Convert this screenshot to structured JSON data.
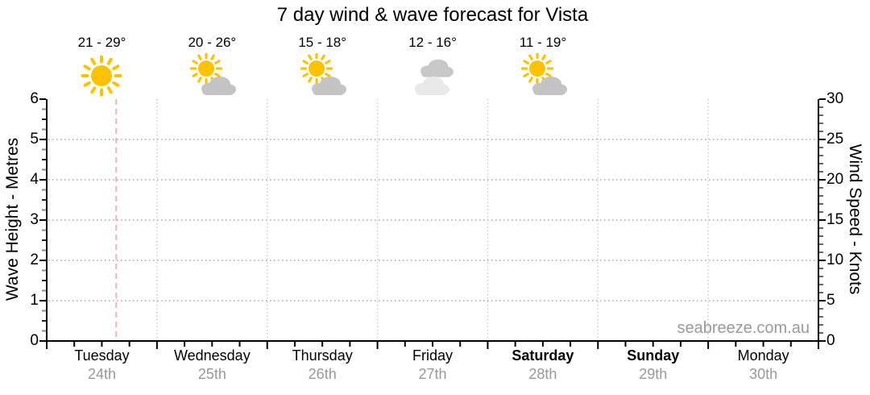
{
  "title": "7 day wind & wave forecast for Vista",
  "watermark": "seabreeze.com.au",
  "colors": {
    "sun": "#ffc200",
    "cloud": "#c4c4c4",
    "cloud_dark": "#c8c8c8",
    "cloud_light": "#e9e9e9",
    "axis": "#000000",
    "gridline": "#a8a8a8",
    "day_separator": "#c6c6c6",
    "now_line": "#f5b2b2",
    "date_text": "#999999",
    "watermark_text": "#9a9a9a"
  },
  "chart_data": {
    "type": "line",
    "title": "7 day wind & wave forecast for Vista",
    "series": [],
    "left_axis": {
      "label": "Wave Height - Metres",
      "min": 0,
      "max": 6,
      "major_step": 1,
      "minor_step": 0.25,
      "major_ticks": [
        0,
        1,
        2,
        3,
        4,
        5,
        6
      ]
    },
    "right_axis": {
      "label": "Wind Speed - Knots",
      "min": 0,
      "max": 30,
      "major_step": 5,
      "minor_step": 1,
      "major_ticks": [
        0,
        5,
        10,
        15,
        20,
        25,
        30
      ]
    },
    "grid": {
      "horizontal_dotted_at_wave_height": [
        1,
        2,
        3,
        4,
        5
      ],
      "vertical_dotted_day_separators": true
    },
    "bottom_axis": {
      "minor_ticks_per_day": 4
    },
    "now_marker": {
      "day_index": 0,
      "x_fraction_of_plot": 0.09,
      "style": "dashed"
    },
    "days": [
      {
        "name": "Tuesday",
        "date": "24th",
        "weekend": false,
        "temp_range": "21 - 29°",
        "icon": "sunny"
      },
      {
        "name": "Wednesday",
        "date": "25th",
        "weekend": false,
        "temp_range": "20 - 26°",
        "icon": "sun-cloud"
      },
      {
        "name": "Thursday",
        "date": "26th",
        "weekend": false,
        "temp_range": "15 - 18°",
        "icon": "sun-cloud"
      },
      {
        "name": "Friday",
        "date": "27th",
        "weekend": false,
        "temp_range": "12 - 16°",
        "icon": "clouds"
      },
      {
        "name": "Saturday",
        "date": "28th",
        "weekend": true,
        "temp_range": "11 - 19°",
        "icon": "sun-cloud"
      },
      {
        "name": "Sunday",
        "date": "29th",
        "weekend": true,
        "temp_range": null,
        "icon": null
      },
      {
        "name": "Monday",
        "date": "30th",
        "weekend": false,
        "temp_range": null,
        "icon": null
      }
    ]
  }
}
